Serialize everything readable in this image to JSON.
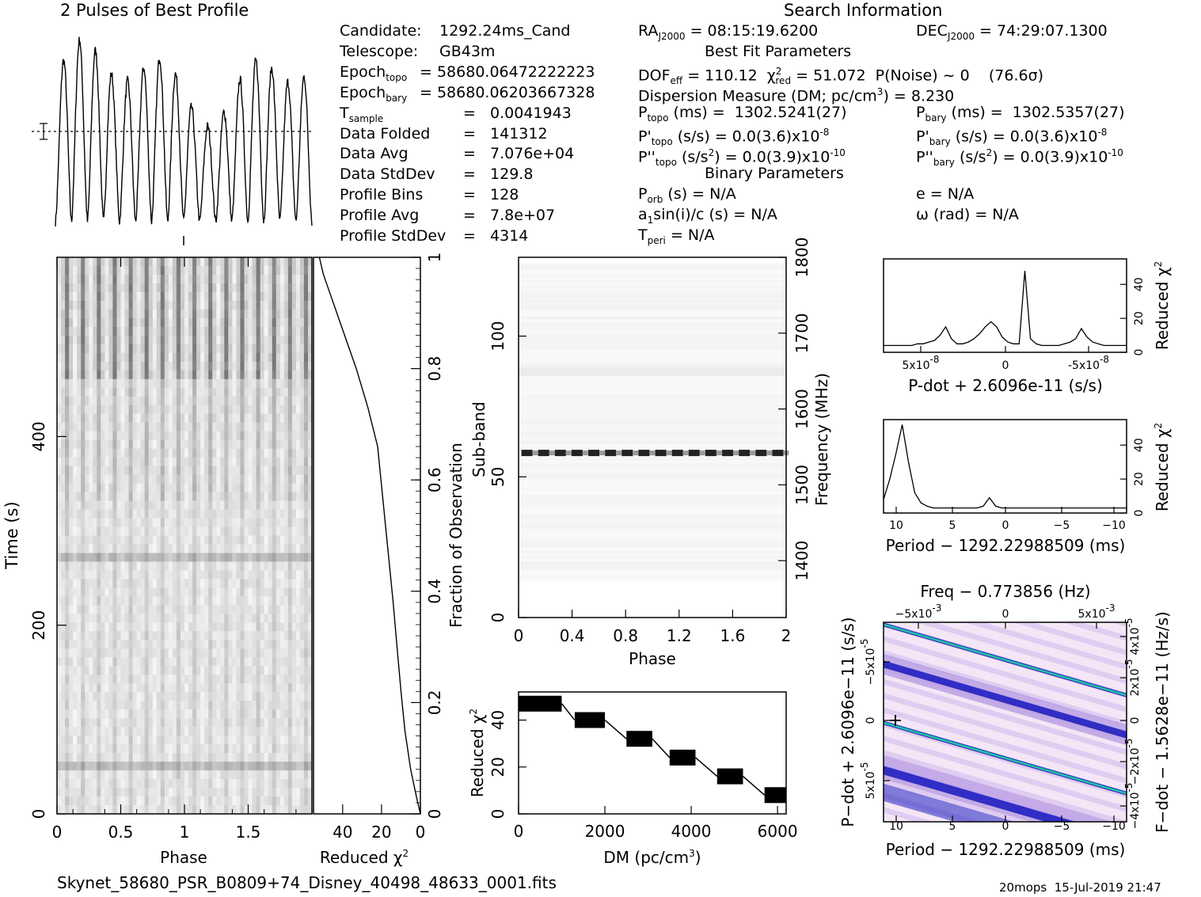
{
  "titles": {
    "profile_title": "2 Pulses of Best Profile",
    "search_info": "Search Information",
    "best_fit": "Best Fit Parameters",
    "binary": "Binary Parameters",
    "footer_file": "Skynet_58680_PSR_B0809+74_Disney_40498_48633_0001.fits",
    "footer_stamp": "20mops  15-Jul-2019 21:47"
  },
  "info_left": [
    {
      "label": "Candidate:",
      "value": "1292.24ms_Cand"
    },
    {
      "label": "Telescope:",
      "value": "GB43m"
    },
    {
      "label": "Epoch",
      "sub": "topo",
      "value": "= 58680.06472222223"
    },
    {
      "label": "Epoch",
      "sub": "bary",
      "value": "= 58680.06203667328"
    },
    {
      "label": "T",
      "sub": "sample",
      "value": "=   0.0041943"
    },
    {
      "label": "Data Folded",
      "value": "=   141312"
    },
    {
      "label": "Data Avg",
      "value": "=   7.076e+04"
    },
    {
      "label": "Data StdDev",
      "value": "=   129.8"
    },
    {
      "label": "Profile Bins",
      "value": "=   128"
    },
    {
      "label": "Profile Avg",
      "value": "=   7.8e+07"
    },
    {
      "label": "Profile StdDev",
      "value": "=   4314"
    }
  ],
  "search": {
    "ra_label": "RA",
    "ra_sub": "J2000",
    "ra_value": "= 08:15:19.6200",
    "dec_label": "DEC",
    "dec_sub": "J2000",
    "dec_value": "= 74:29:07.1300",
    "dof_label": "DOF",
    "dof_sub": "eff",
    "dof_value": "= 110.12",
    "chi_label": "χ",
    "chi_sup": "2",
    "chi_sub": "red",
    "chi_value": "= 51.072",
    "pnoise": "P(Noise) ~ 0    (76.6σ)",
    "dm_text": "Dispersion Measure (DM; pc/cm",
    "dm_sup": "3",
    "dm_value": ") = 8.230",
    "ptopo_label": "P",
    "ptopo_sub": "topo",
    "ptopo_value": "(ms) =  1302.5241(27)",
    "pbary_label": "P",
    "pbary_sub": "bary",
    "pbary_value": "(ms) =  1302.5357(27)",
    "pdtopo_label": "P'",
    "pdtopo_sub": "topo",
    "pdtopo_value": "(s/s) = 0.0(3.6)x10",
    "pdtopo_exp": "-8",
    "pdbary_label": "P'",
    "pdbary_sub": "bary",
    "pdbary_value": "(s/s) = 0.0(3.6)x10",
    "pdbary_exp": "-8",
    "pddtopo_label": "P''",
    "pddtopo_sub": "topo",
    "pddtopo_value": "(s/s",
    "pddtopo_unit_sup": "2",
    "pddtopo_rest": ") = 0.0(3.9)x10",
    "pddtopo_exp": "-10",
    "pddbary_label": "P''",
    "pddbary_sub": "bary",
    "pddbary_value": "(s/s",
    "pddbary_unit_sup": "2",
    "pddbary_rest": ") = 0.0(3.9)x10",
    "pddbary_exp": "-10",
    "porb_label": "P",
    "porb_sub": "orb",
    "porb_value": "(s) = N/A",
    "e_text": "e = N/A",
    "a1_text_a": "a",
    "a1_sub": "1",
    "a1_text_b": "sin(i)/c (s) = N/A",
    "omega_text": "ω (rad) = N/A",
    "tperi_label": "T",
    "tperi_sub": "peri",
    "tperi_value": "= N/A"
  },
  "chart_data": [
    {
      "type": "line",
      "name": "profile",
      "title": "2 Pulses of Best Profile",
      "pulses_shown": 16,
      "description_values": "approx sinusoidal profile with ~16 peaks across 2 phase cycles"
    },
    {
      "type": "heatmap",
      "name": "time-phase",
      "xlabel": "Phase",
      "ylabel": "Time (s)",
      "xlim": [
        0,
        2
      ],
      "ylim": [
        0,
        590
      ],
      "x_ticks": [
        "0",
        "0.5",
        "1",
        "1.5"
      ],
      "y_ticks": [
        "0",
        "200",
        "400"
      ]
    },
    {
      "type": "line",
      "name": "cumulative-chi2",
      "xlabel": "Reduced χ",
      "xlabel_sup": "2",
      "ylabel": "Fraction of Observation",
      "xlim": [
        0,
        55
      ],
      "x_ticks": [
        "40",
        "20",
        "0"
      ],
      "y_ticks": [
        "0",
        "0.2",
        "0.4",
        "0.6",
        "0.8",
        "1"
      ],
      "x": [
        52,
        50,
        46,
        40,
        33,
        27,
        22,
        20,
        18,
        16,
        14,
        12,
        10,
        8,
        5,
        2,
        0
      ],
      "y": [
        1.0,
        0.97,
        0.93,
        0.87,
        0.8,
        0.73,
        0.66,
        0.59,
        0.52,
        0.45,
        0.38,
        0.3,
        0.22,
        0.15,
        0.08,
        0.03,
        0.0
      ]
    },
    {
      "type": "heatmap",
      "name": "subband-phase",
      "xlabel": "Phase",
      "ylabel": "Sub-band",
      "ylabel2": "Frequency (MHz)",
      "xlim": [
        0,
        2
      ],
      "ylim": [
        0,
        128
      ],
      "x_ticks": [
        "0",
        "0.4",
        "0.8",
        "1.2",
        "1.6",
        "2"
      ],
      "y_ticks": [
        "0",
        "50",
        "100"
      ],
      "y2_ticks": [
        "1400",
        "1500",
        "1600",
        "1700",
        "1800"
      ],
      "bright_subband": 58
    },
    {
      "type": "line",
      "name": "dm-curve",
      "xlabel": "DM (pc/cm",
      "xlabel_sup": "3",
      "xlabel_end": ")",
      "ylabel": "Reduced χ",
      "ylabel_sup": "2",
      "xlim": [
        0,
        6200
      ],
      "ylim": [
        0,
        52
      ],
      "x_ticks": [
        "0",
        "2000",
        "4000",
        "6000"
      ],
      "y_ticks": [
        "0",
        "20",
        "40"
      ],
      "steps": [
        {
          "x0": 0,
          "x1": 1000,
          "y": 47
        },
        {
          "x0": 1300,
          "x1": 2000,
          "y": 40
        },
        {
          "x0": 2500,
          "x1": 3100,
          "y": 32
        },
        {
          "x0": 3500,
          "x1": 4100,
          "y": 24
        },
        {
          "x0": 4600,
          "x1": 5200,
          "y": 16
        },
        {
          "x0": 5700,
          "x1": 6200,
          "y": 8
        }
      ]
    },
    {
      "type": "line",
      "name": "pdot-curve",
      "xlabel": "P-dot + 2.6096e-11 (s/s)",
      "ylabel": "Reduced χ",
      "ylabel_sup": "2",
      "x_ticks": [
        "5x10",
        "0",
        "-5x10"
      ],
      "x_tick_exp": "-8",
      "y_ticks": [
        "0",
        "20",
        "40"
      ],
      "ylim": [
        0,
        55
      ],
      "y": [
        4,
        4,
        4,
        4,
        4,
        4,
        5,
        5,
        6,
        7,
        10,
        15,
        8,
        5,
        5,
        6,
        8,
        11,
        15,
        18,
        15,
        9,
        6,
        5,
        5,
        48,
        8,
        5,
        4,
        4,
        4,
        4,
        5,
        6,
        8,
        14,
        9,
        6,
        5,
        4,
        4,
        4,
        4,
        4
      ]
    },
    {
      "type": "line",
      "name": "period-curve",
      "xlabel": "Period − 1292.22988509 (ms)",
      "ylabel": "Reduced χ",
      "ylabel_sup": "2",
      "x_ticks": [
        "10",
        "5",
        "0",
        "−5",
        "−10"
      ],
      "y_ticks": [
        "0",
        "20",
        "40"
      ],
      "ylim": [
        0,
        55
      ],
      "y": [
        8,
        20,
        35,
        52,
        30,
        12,
        6,
        4,
        3,
        3,
        3,
        3,
        3,
        3,
        3,
        3,
        4,
        9,
        4,
        3,
        3,
        3,
        3,
        3,
        3,
        3,
        3,
        3,
        3,
        3,
        3,
        3,
        3,
        3,
        3,
        3,
        3,
        3,
        3,
        3
      ]
    },
    {
      "type": "heatmap",
      "name": "period-pdot",
      "xlabel": "Period − 1292.22988509 (ms)",
      "ylabel": "P−dot + 2.6096e−11 (s/s)",
      "top_label": "Freq − 0.773856 (Hz)",
      "right_label": "F−dot − 1.5628e−11 (Hz/s)",
      "x_ticks": [
        "10",
        "5",
        "0",
        "−5",
        "−10"
      ],
      "top_ticks": [
        "−5x10",
        "0",
        "5x10"
      ],
      "top_tick_exp": "-3",
      "y_ticks": [
        "5x10",
        "0",
        "−5x10"
      ],
      "y_tick_exp": "-5",
      "right_ticks": [
        "−4x10",
        "−2x10",
        "0",
        "2x10",
        "4x10"
      ],
      "right_tick_exp": "-5",
      "colors": [
        "#f4e6f6",
        "#c8a8e8",
        "#3838d8",
        "#1010a0",
        "#18c8a0"
      ]
    }
  ],
  "colors": {
    "background": "#ffffff",
    "ink": "#000000",
    "heat_dark": "#333333",
    "pp_light": "#f4e6f6",
    "pp_mid": "#b89ce4",
    "pp_blue": "#2020c0",
    "pp_green": "#20c8a0"
  }
}
